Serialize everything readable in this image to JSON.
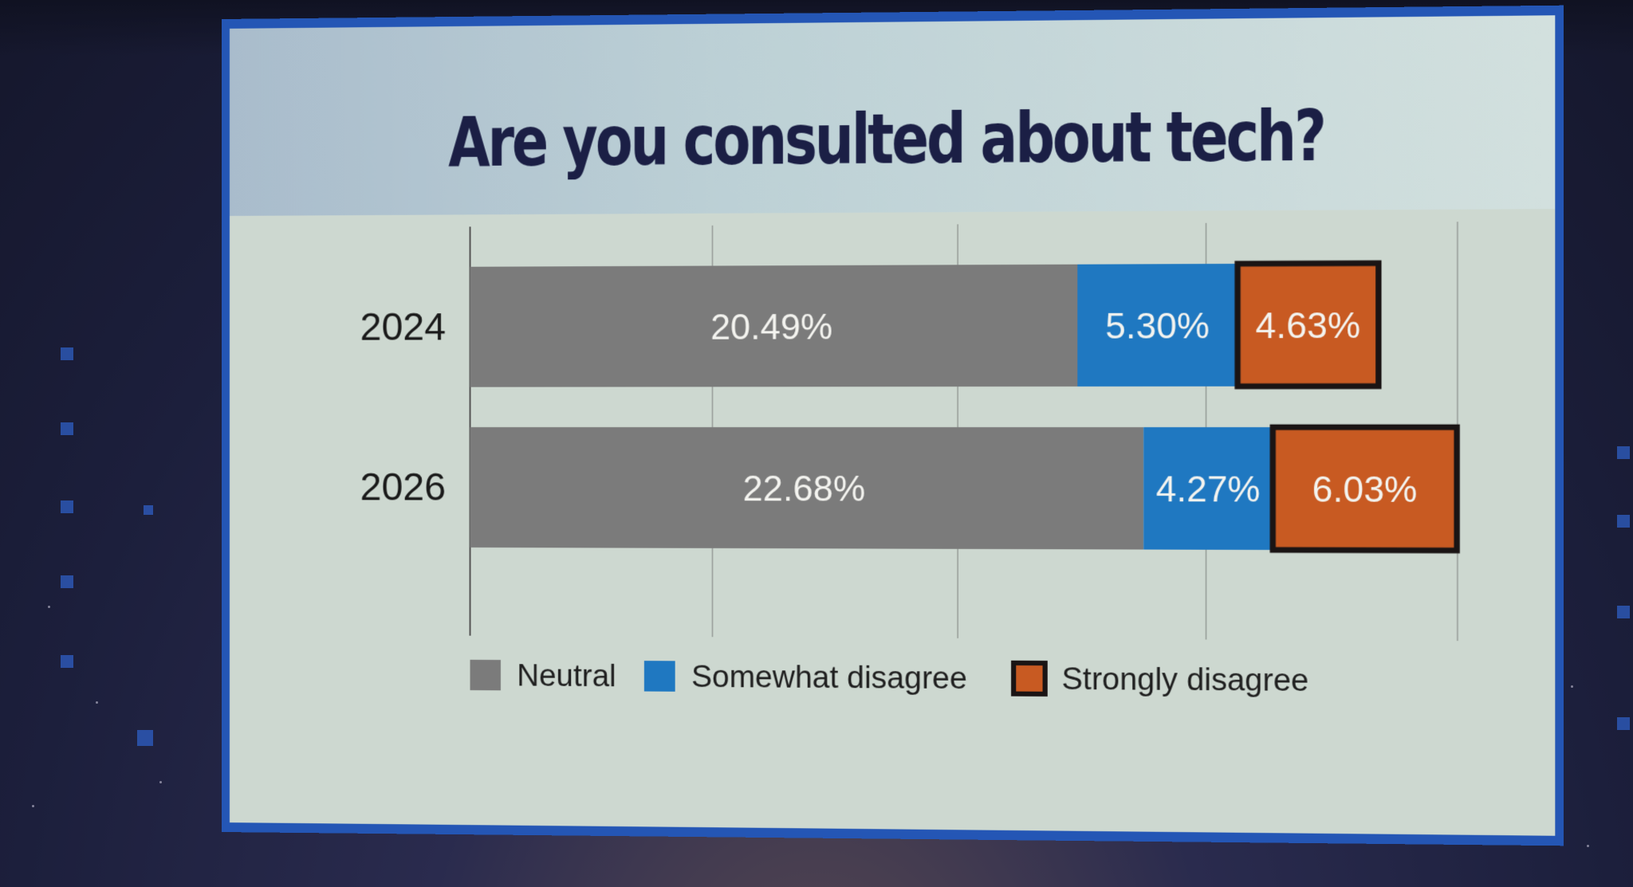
{
  "slide": {
    "title": "Are you consulted about tech?"
  },
  "chart_data": {
    "type": "bar",
    "orientation": "horizontal",
    "stacked": true,
    "title": "Are you consulted about tech?",
    "xlabel": "",
    "ylabel": "",
    "categories": [
      "2024",
      "2026"
    ],
    "series": [
      {
        "name": "Neutral",
        "color": "#7b7b7b",
        "values": [
          20.49,
          22.68
        ],
        "labels": [
          "20.49%",
          "22.68%"
        ]
      },
      {
        "name": "Somewhat disagree",
        "color": "#1f78c1",
        "values": [
          5.3,
          4.27
        ],
        "labels": [
          "5.30%",
          "4.27%"
        ]
      },
      {
        "name": "Strongly disagree",
        "color": "#c85a22",
        "values": [
          4.63,
          6.03
        ],
        "labels": [
          "4.63%",
          "6.03%"
        ],
        "outlined": true
      }
    ],
    "xlim": [
      0,
      33
    ],
    "gridlines": 4,
    "grid": true,
    "tick_labels_visible": false,
    "legend": {
      "placement": "bottom",
      "entries": [
        "Neutral",
        "Somewhat disagree",
        "Strongly disagree"
      ]
    }
  }
}
